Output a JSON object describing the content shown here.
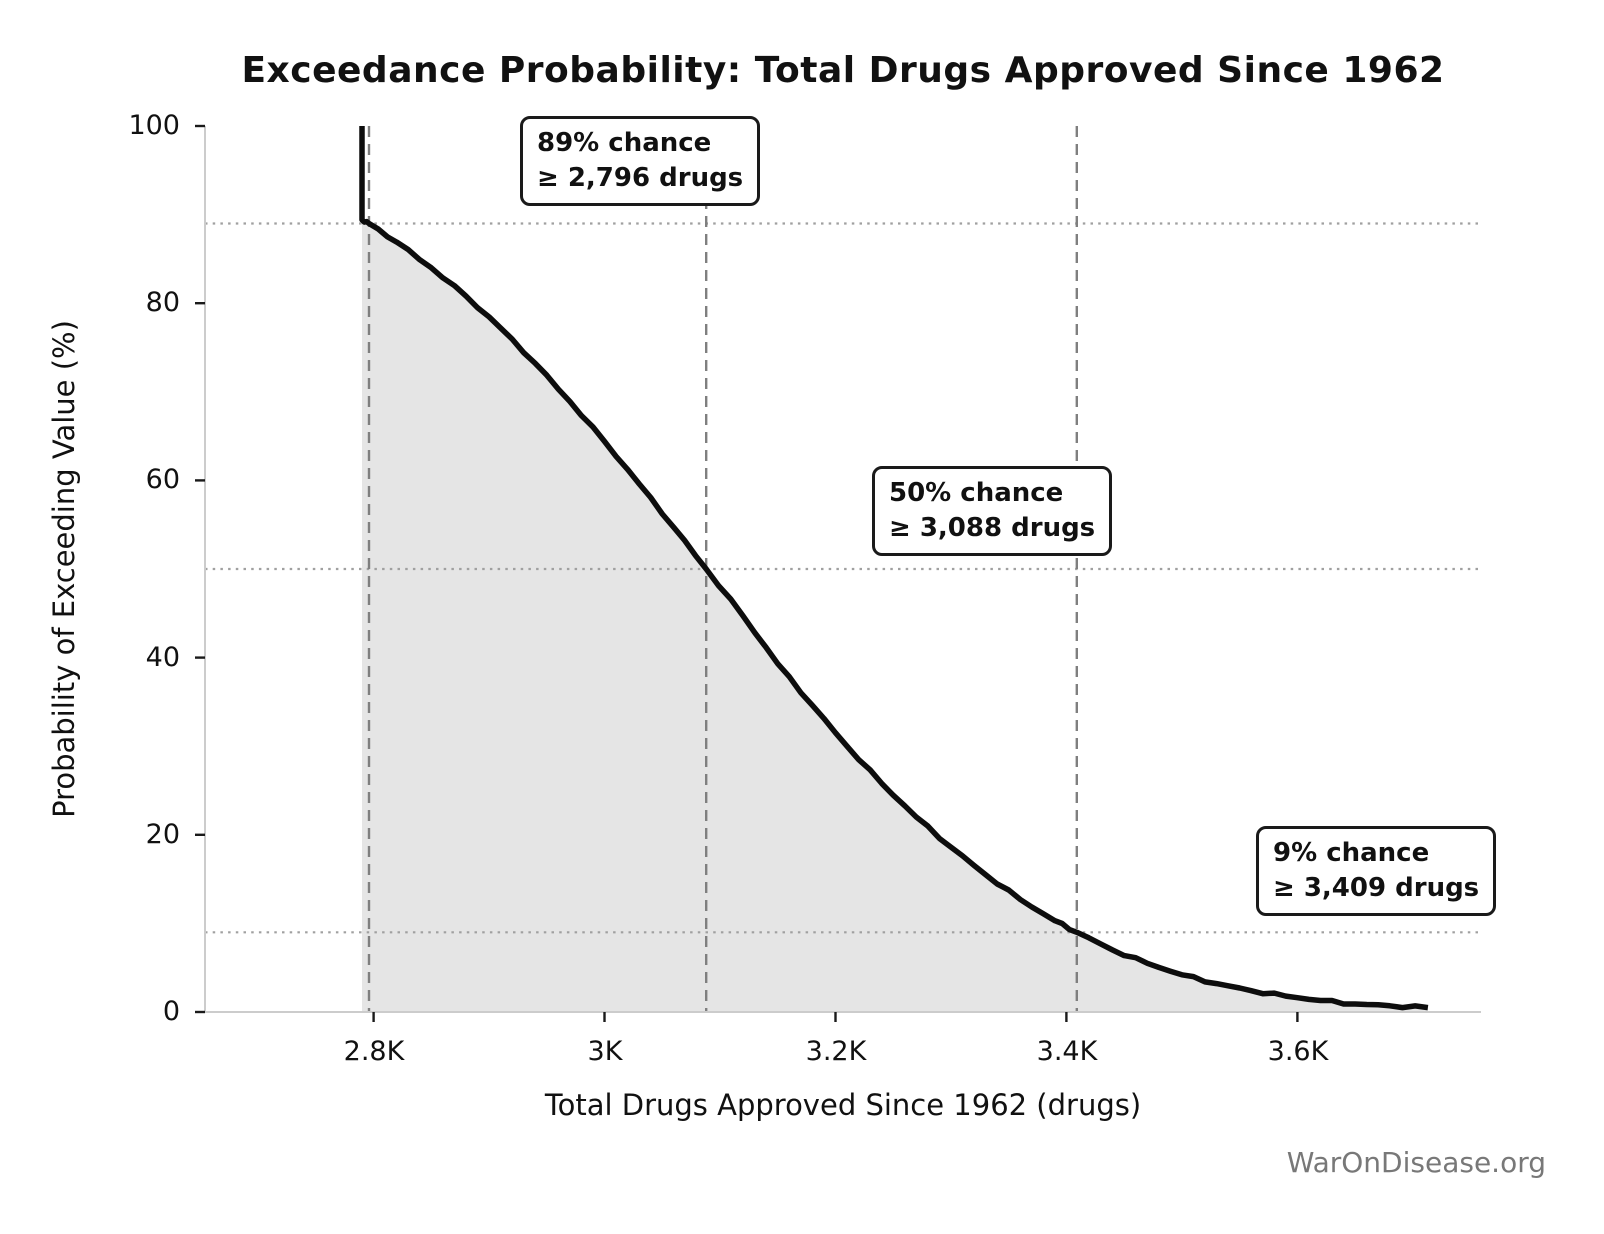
{
  "chart_data": {
    "type": "line",
    "title": "Exceedance Probability: Total Drugs Approved Since 1962",
    "xlabel": "Total Drugs Approved Since 1962 (drugs)",
    "ylabel": "Probability of Exceeding Value (%)",
    "xlim": [
      2654,
      3759
    ],
    "ylim": [
      0,
      100
    ],
    "grid": "reference-lines-only",
    "legend_position": "none",
    "x_ticks": [
      {
        "value": 2800,
        "label": "2.8K"
      },
      {
        "value": 3000,
        "label": "3K"
      },
      {
        "value": 3200,
        "label": "3.2K"
      },
      {
        "value": 3400,
        "label": "3.4K"
      },
      {
        "value": 3600,
        "label": "3.6K"
      }
    ],
    "y_ticks": [
      {
        "value": 0,
        "label": "0"
      },
      {
        "value": 20,
        "label": "20"
      },
      {
        "value": 40,
        "label": "40"
      },
      {
        "value": 60,
        "label": "60"
      },
      {
        "value": 80,
        "label": "80"
      },
      {
        "value": 100,
        "label": "100"
      }
    ],
    "series_name": "Exceedance probability curve",
    "curve": [
      [
        2790,
        100.0
      ],
      [
        2790,
        89.4
      ],
      [
        2796,
        89.0
      ],
      [
        2820,
        86.9
      ],
      [
        2850,
        84.0
      ],
      [
        2880,
        80.8
      ],
      [
        2910,
        77.2
      ],
      [
        2940,
        73.2
      ],
      [
        2970,
        68.9
      ],
      [
        3000,
        64.4
      ],
      [
        3030,
        59.6
      ],
      [
        3060,
        54.7
      ],
      [
        3088,
        50.0
      ],
      [
        3120,
        44.7
      ],
      [
        3150,
        39.3
      ],
      [
        3180,
        34.6
      ],
      [
        3210,
        30.0
      ],
      [
        3240,
        25.8
      ],
      [
        3270,
        22.0
      ],
      [
        3300,
        18.6
      ],
      [
        3330,
        15.5
      ],
      [
        3360,
        12.7
      ],
      [
        3390,
        10.3
      ],
      [
        3409,
        9.0
      ],
      [
        3440,
        7.0
      ],
      [
        3470,
        5.5
      ],
      [
        3500,
        4.2
      ],
      [
        3530,
        3.2
      ],
      [
        3560,
        2.4
      ],
      [
        3590,
        1.8
      ],
      [
        3620,
        1.3
      ],
      [
        3650,
        0.9
      ],
      [
        3680,
        0.7
      ],
      [
        3713,
        0.5
      ]
    ],
    "reference_lines": [
      {
        "pct": 89,
        "drugs": 2796
      },
      {
        "pct": 50,
        "drugs": 3088
      },
      {
        "pct": 9,
        "drugs": 3409
      }
    ],
    "annotations": [
      {
        "line1": "89% chance",
        "line2": "≥ 2,796 drugs"
      },
      {
        "line1": "50% chance",
        "line2": "≥ 3,088 drugs"
      },
      {
        "line1": "9% chance",
        "line2": "≥ 3,409 drugs"
      }
    ],
    "colors": {
      "curve": "#0d0d0d",
      "fill": "#e5e5e5",
      "dashed_line": "#7f7f7f",
      "dotted_line": "#a0a0a0",
      "spine": "#cccccc",
      "tick": "#1a1a1a"
    }
  },
  "watermark": "WarOnDisease.org"
}
